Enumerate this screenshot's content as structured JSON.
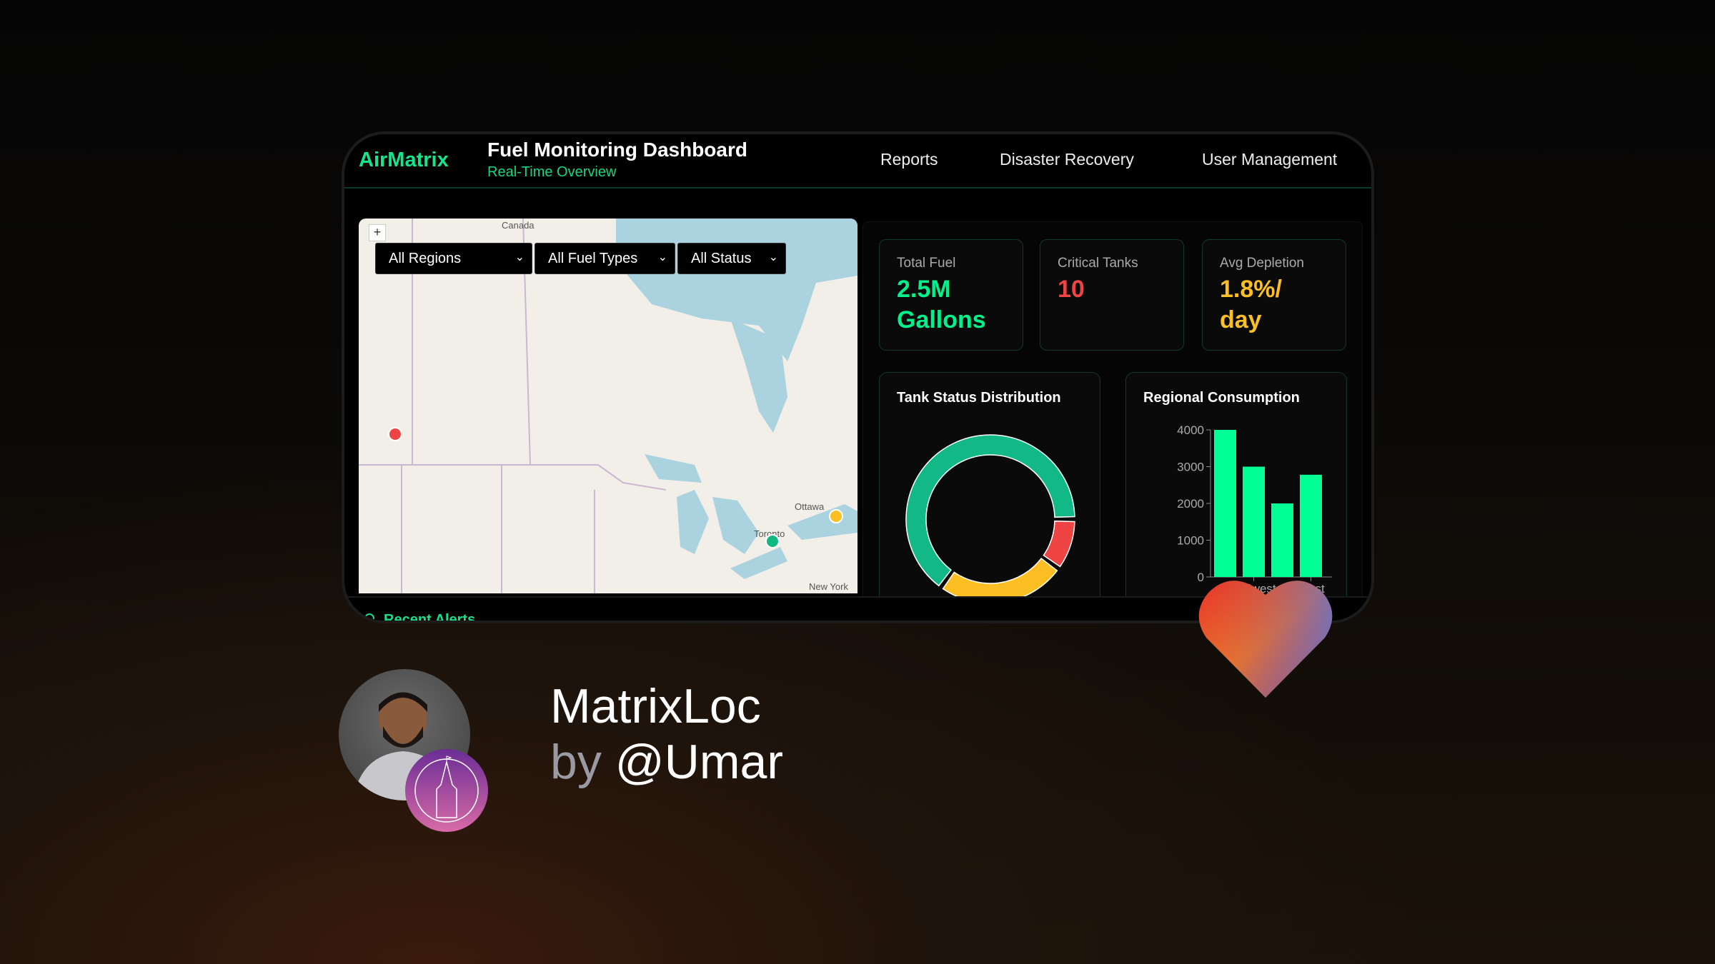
{
  "header": {
    "logo": "AirMatrix",
    "title": "Fuel Monitoring Dashboard",
    "subtitle": "Real-Time Overview",
    "nav": [
      "Reports",
      "Disaster Recovery",
      "User Management"
    ]
  },
  "map": {
    "zoom_in": "+",
    "labels": {
      "canada": "Canada",
      "ottawa": "Ottawa",
      "toronto": "Toronto",
      "new_york": "New York"
    },
    "filters": [
      "All Regions",
      "All Fuel Types",
      "All Status"
    ],
    "markers": [
      {
        "status": "critical",
        "color": "#ef4444"
      },
      {
        "status": "warning",
        "color": "#fbbf24"
      },
      {
        "status": "normal",
        "color": "#10b981"
      }
    ]
  },
  "kpis": [
    {
      "label": "Total Fuel",
      "value": "2.5M Gallons",
      "color": "#00f08c"
    },
    {
      "label": "Critical Tanks",
      "value": "10",
      "color": "#ef4444"
    },
    {
      "label": "Avg Depletion",
      "value": "1.8%/ day",
      "color": "#fbbf24"
    }
  ],
  "chart_data": [
    {
      "type": "pie",
      "title": "Tank Status Distribution",
      "donut": true,
      "series": [
        {
          "values": [
            65,
            10,
            25
          ],
          "colors": [
            "#12b886",
            "#ef4444",
            "#fbbf24"
          ]
        }
      ]
    },
    {
      "type": "bar",
      "title": "Regional Consumption",
      "categories": [
        "",
        "Midwest",
        "",
        "West"
      ],
      "values": [
        4000,
        3000,
        2000,
        2780
      ],
      "ylim": [
        0,
        4000
      ],
      "yticks": [
        0,
        1000,
        2000,
        3000,
        4000
      ],
      "color": "#00ff95"
    }
  ],
  "footer": {
    "recent_alerts": "Recent Alerts"
  },
  "promo": {
    "name": "MatrixLoc",
    "by": "by",
    "handle": "@Umar"
  }
}
